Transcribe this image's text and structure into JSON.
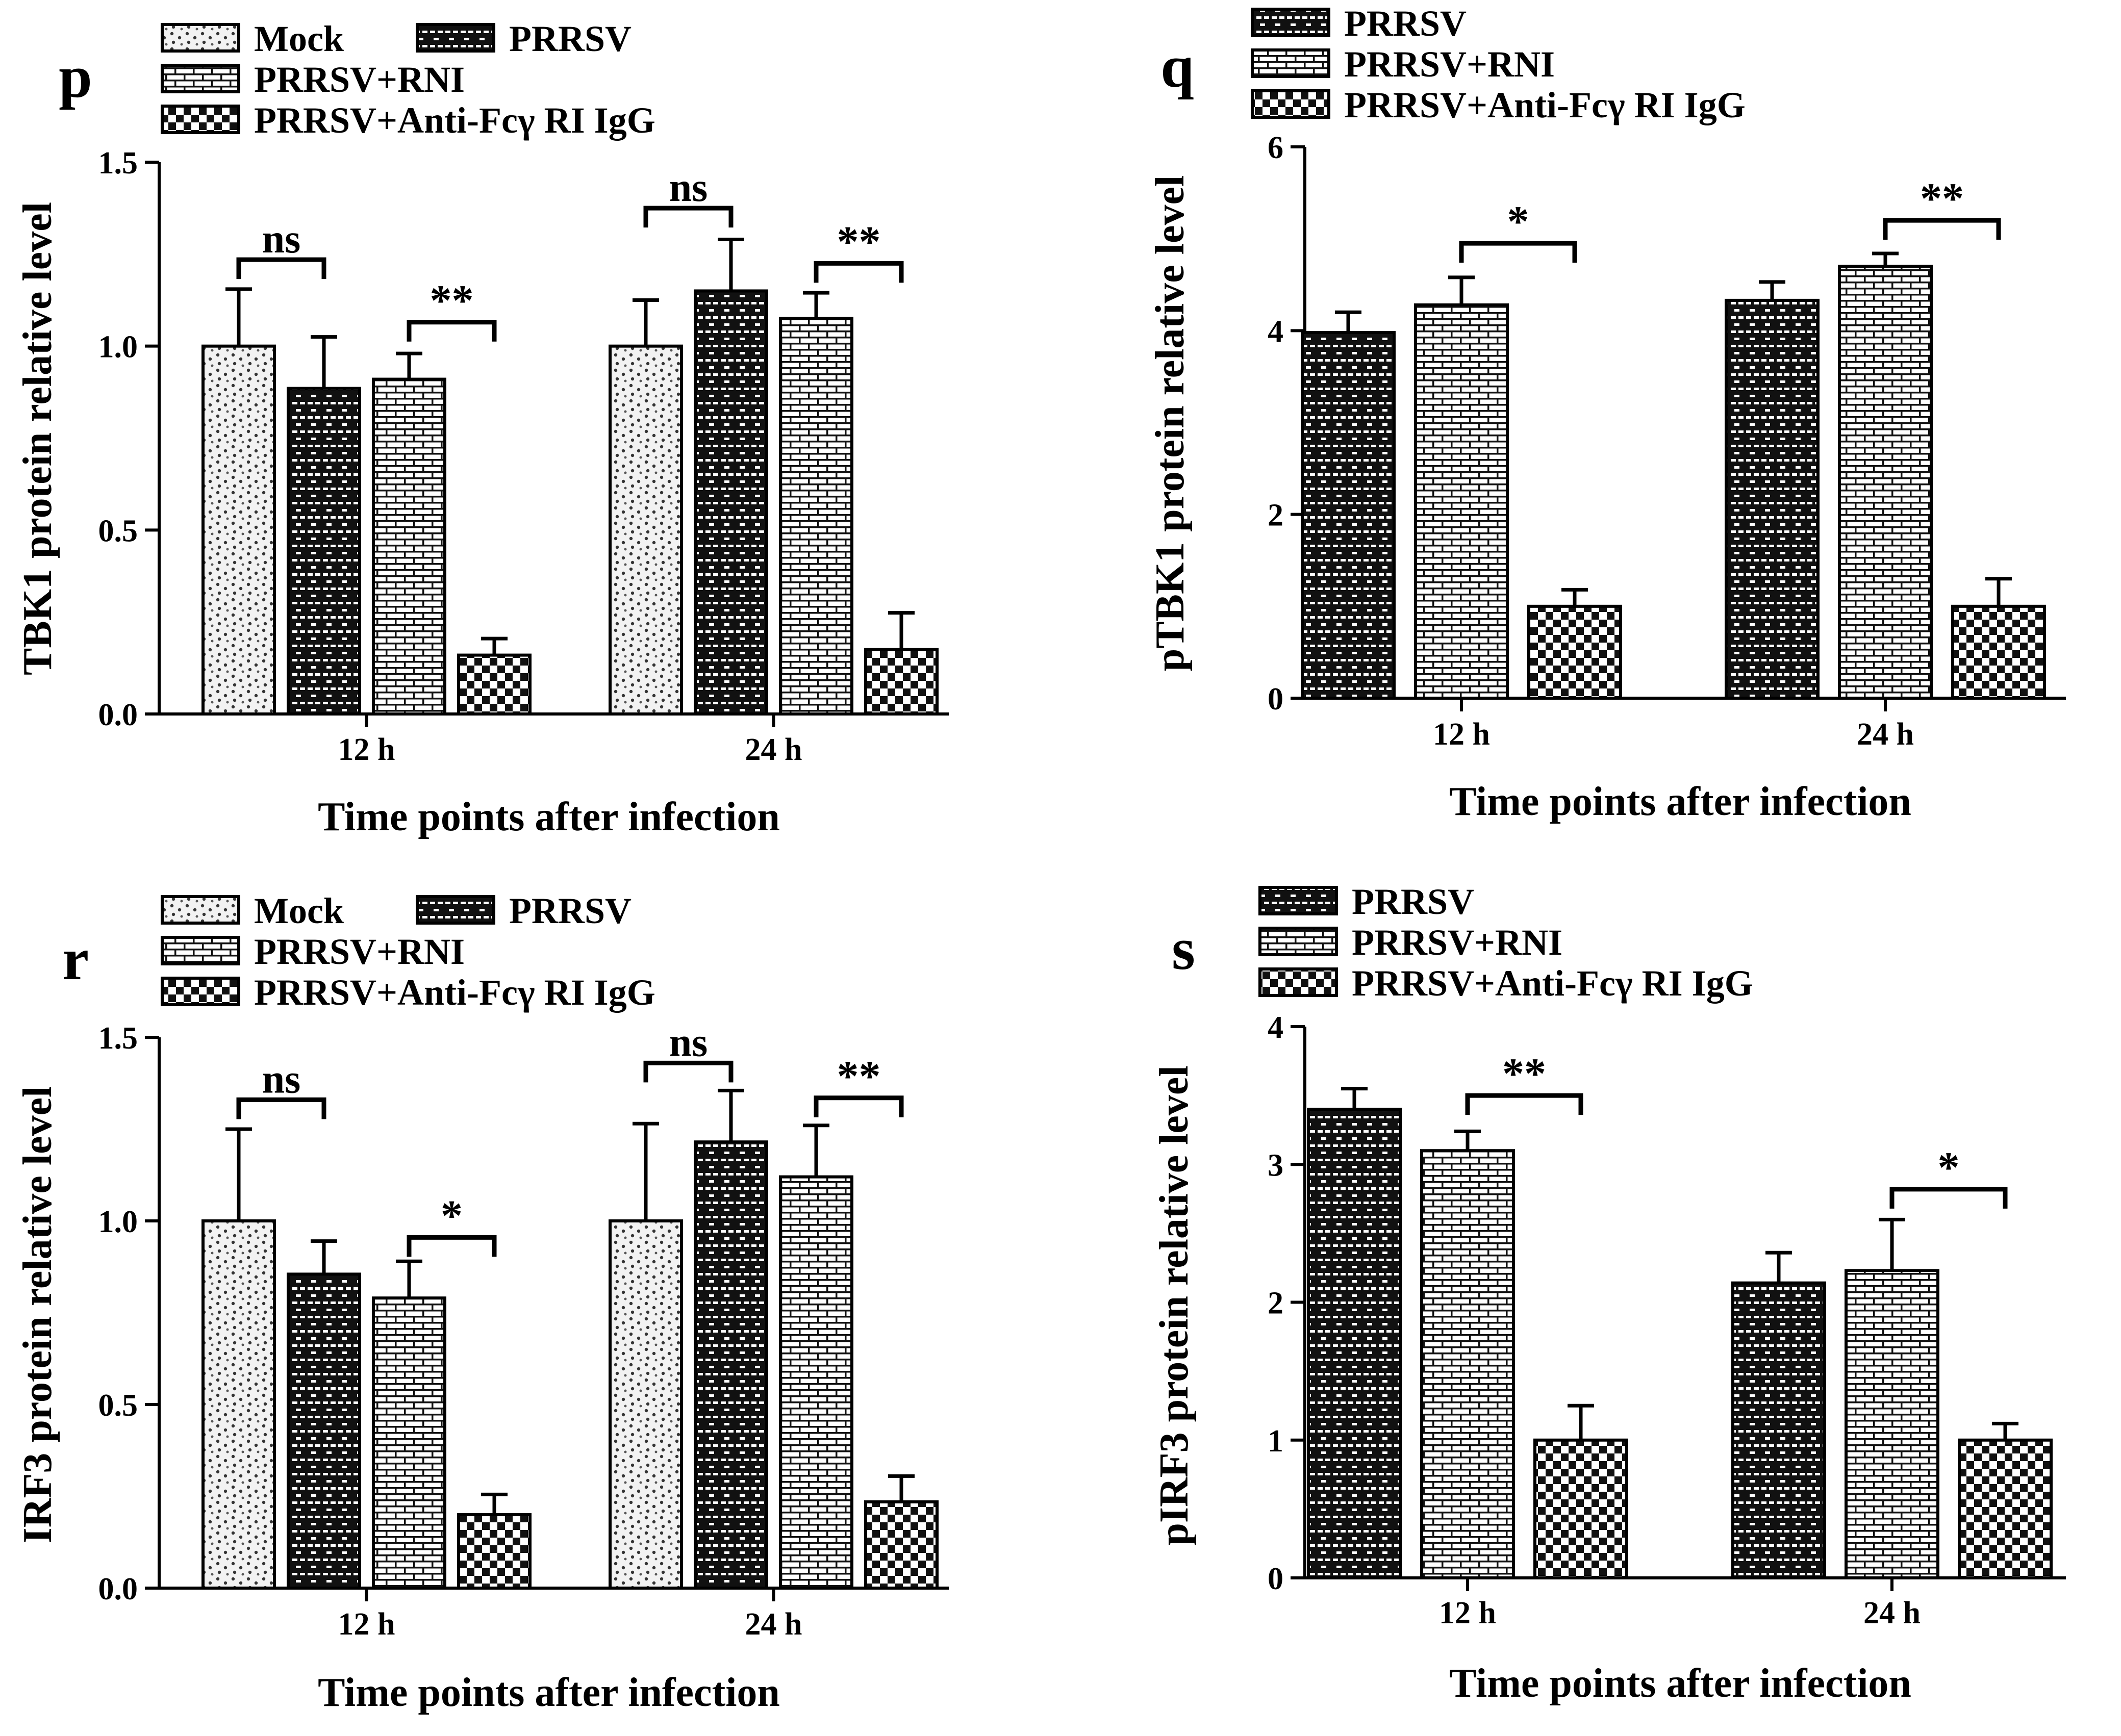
{
  "figure": {
    "legend_series": {
      "Mock": "Mock",
      "PRRSV": "PRRSV",
      "PRRSV+RNI": "PRRSV+RNI",
      "Anti": "PRRSV+Anti-Fcγ  RI IgG"
    }
  },
  "chart_data": [
    {
      "panel": "p",
      "type": "bar",
      "ylabel": "TBK1 protein relative level",
      "xlabel": "Time points after infection",
      "categories": [
        "12 h",
        "24 h"
      ],
      "ylim": [
        0,
        1.5
      ],
      "yticks": [
        "0.0",
        "0.5",
        "1.0",
        "1.5"
      ],
      "legend": [
        "Mock",
        "PRRSV",
        "PRRSV+RNI",
        "PRRSV+Anti-Fcγ  RI IgG"
      ],
      "series": [
        {
          "name": "Mock",
          "values": [
            1.0,
            1.0
          ],
          "errors": [
            0.155,
            0.125
          ]
        },
        {
          "name": "PRRSV",
          "values": [
            0.885,
            1.15
          ],
          "errors": [
            0.14,
            0.14
          ]
        },
        {
          "name": "PRRSV+RNI",
          "values": [
            0.91,
            1.075
          ],
          "errors": [
            0.07,
            0.07
          ]
        },
        {
          "name": "PRRSV+Anti-Fcγ  RI IgG",
          "values": [
            0.16,
            0.175
          ],
          "errors": [
            0.045,
            0.1
          ]
        }
      ],
      "annotations": [
        {
          "text": "ns",
          "group": 0,
          "from": 0,
          "to": 1,
          "y": 1.235
        },
        {
          "text": "**",
          "group": 0,
          "from": 2,
          "to": 3,
          "y": 1.065
        },
        {
          "text": "ns",
          "group": 1,
          "from": 0,
          "to": 1,
          "y": 1.375
        },
        {
          "text": "**",
          "group": 1,
          "from": 2,
          "to": 3,
          "y": 1.225
        }
      ]
    },
    {
      "panel": "q",
      "type": "bar",
      "ylabel": "pTBK1 protein relative level",
      "xlabel": "Time points after infection",
      "categories": [
        "12 h",
        "24 h"
      ],
      "ylim": [
        0,
        6
      ],
      "yticks": [
        "0",
        "2",
        "4",
        "6"
      ],
      "legend": [
        "PRRSV",
        "PRRSV+RNI",
        "PRRSV+Anti-Fcγ  RI IgG"
      ],
      "series": [
        {
          "name": "PRRSV",
          "values": [
            3.98,
            4.33
          ],
          "errors": [
            0.22,
            0.2
          ]
        },
        {
          "name": "PRRSV+RNI",
          "values": [
            4.28,
            4.7
          ],
          "errors": [
            0.3,
            0.14
          ]
        },
        {
          "name": "PRRSV+Anti-Fcγ  RI IgG",
          "values": [
            1.0,
            1.0
          ],
          "errors": [
            0.18,
            0.3
          ]
        }
      ],
      "annotations": [
        {
          "text": "*",
          "group": 0,
          "from": 1,
          "to": 2,
          "y": 4.95
        },
        {
          "text": "**",
          "group": 1,
          "from": 1,
          "to": 2,
          "y": 5.2
        }
      ]
    },
    {
      "panel": "r",
      "type": "bar",
      "ylabel": "IRF3 protein relative level",
      "xlabel": "Time points after infection",
      "categories": [
        "12 h",
        "24 h"
      ],
      "ylim": [
        0,
        1.5
      ],
      "yticks": [
        "0.0",
        "0.5",
        "1.0",
        "1.5"
      ],
      "legend": [
        "Mock",
        "PRRSV",
        "PRRSV+RNI",
        "PRRSV+Anti-Fcγ  RI IgG"
      ],
      "series": [
        {
          "name": "Mock",
          "values": [
            1.0,
            1.0
          ],
          "errors": [
            0.25,
            0.265
          ]
        },
        {
          "name": "PRRSV",
          "values": [
            0.855,
            1.215
          ],
          "errors": [
            0.09,
            0.14
          ]
        },
        {
          "name": "PRRSV+RNI",
          "values": [
            0.79,
            1.12
          ],
          "errors": [
            0.1,
            0.14
          ]
        },
        {
          "name": "PRRSV+Anti-Fcγ  RI IgG",
          "values": [
            0.2,
            0.235
          ],
          "errors": [
            0.055,
            0.07
          ]
        }
      ],
      "annotations": [
        {
          "text": "ns",
          "group": 0,
          "from": 0,
          "to": 1,
          "y": 1.33
        },
        {
          "text": "*",
          "group": 0,
          "from": 2,
          "to": 3,
          "y": 0.955
        },
        {
          "text": "ns",
          "group": 1,
          "from": 0,
          "to": 1,
          "y": 1.43
        },
        {
          "text": "**",
          "group": 1,
          "from": 2,
          "to": 3,
          "y": 1.335
        }
      ]
    },
    {
      "panel": "s",
      "type": "bar",
      "ylabel": "pIRF3 protein relative level",
      "xlabel": "Time points after infection",
      "categories": [
        "12 h",
        "24 h"
      ],
      "ylim": [
        0,
        4
      ],
      "yticks": [
        "0",
        "1",
        "2",
        "3",
        "4"
      ],
      "legend": [
        "PRRSV",
        "PRRSV+RNI",
        "PRRSV+Anti-Fcγ  RI IgG"
      ],
      "series": [
        {
          "name": "PRRSV",
          "values": [
            3.4,
            2.14
          ],
          "errors": [
            0.15,
            0.22
          ]
        },
        {
          "name": "PRRSV+RNI",
          "values": [
            3.1,
            2.23
          ],
          "errors": [
            0.14,
            0.37
          ]
        },
        {
          "name": "PRRSV+Anti-Fcγ  RI IgG",
          "values": [
            1.0,
            1.0
          ],
          "errors": [
            0.25,
            0.12
          ]
        }
      ],
      "annotations": [
        {
          "text": "**",
          "group": 0,
          "from": 1,
          "to": 2,
          "y": 3.5
        },
        {
          "text": "*",
          "group": 1,
          "from": 1,
          "to": 2,
          "y": 2.82
        }
      ]
    }
  ]
}
